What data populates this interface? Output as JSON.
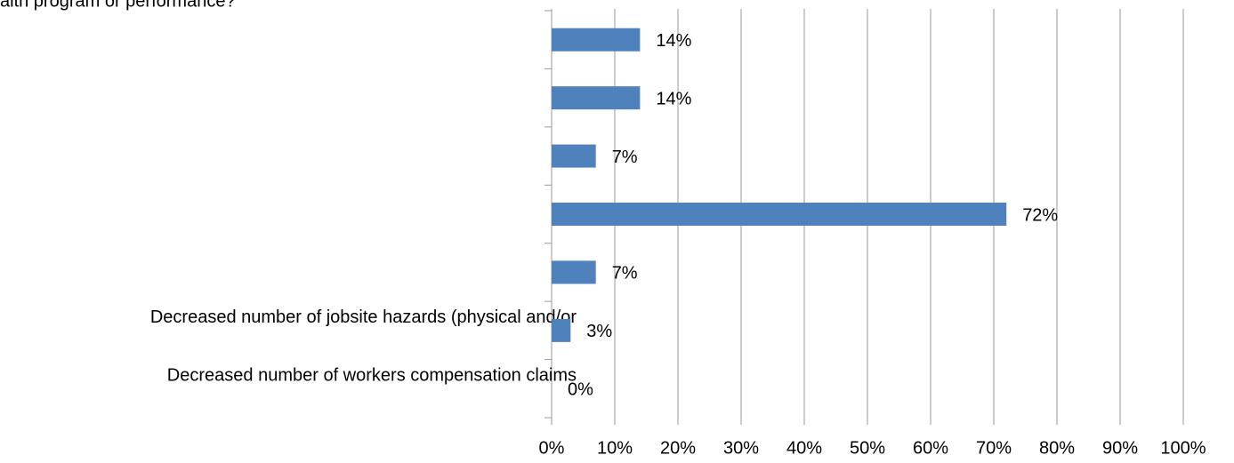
{
  "chart_data": {
    "type": "bar",
    "orientation": "horizontal",
    "title": "alth program or performance?",
    "categories": [
      null,
      null,
      null,
      null,
      null,
      "Decreased number of jobsite hazards (physical and/or",
      "Decreased number of workers compensation claims"
    ],
    "values": [
      14,
      14,
      7,
      72,
      7,
      3,
      0
    ],
    "value_labels": [
      "14%",
      "14%",
      "7%",
      "72%",
      "7%",
      "3%",
      "0%"
    ],
    "color": "#4f81bd",
    "xlim": [
      0,
      100
    ],
    "xticks": [
      {
        "value": 0,
        "label": "0%"
      },
      {
        "value": 10,
        "label": "10%"
      },
      {
        "value": 20,
        "label": "20%"
      },
      {
        "value": 30,
        "label": "30%"
      },
      {
        "value": 40,
        "label": "40%"
      },
      {
        "value": 50,
        "label": "50%"
      },
      {
        "value": 60,
        "label": "60%"
      },
      {
        "value": 70,
        "label": "70%"
      },
      {
        "value": 80,
        "label": "80%"
      },
      {
        "value": 90,
        "label": "90%"
      },
      {
        "value": 100,
        "label": "100%"
      }
    ],
    "grid": true
  }
}
